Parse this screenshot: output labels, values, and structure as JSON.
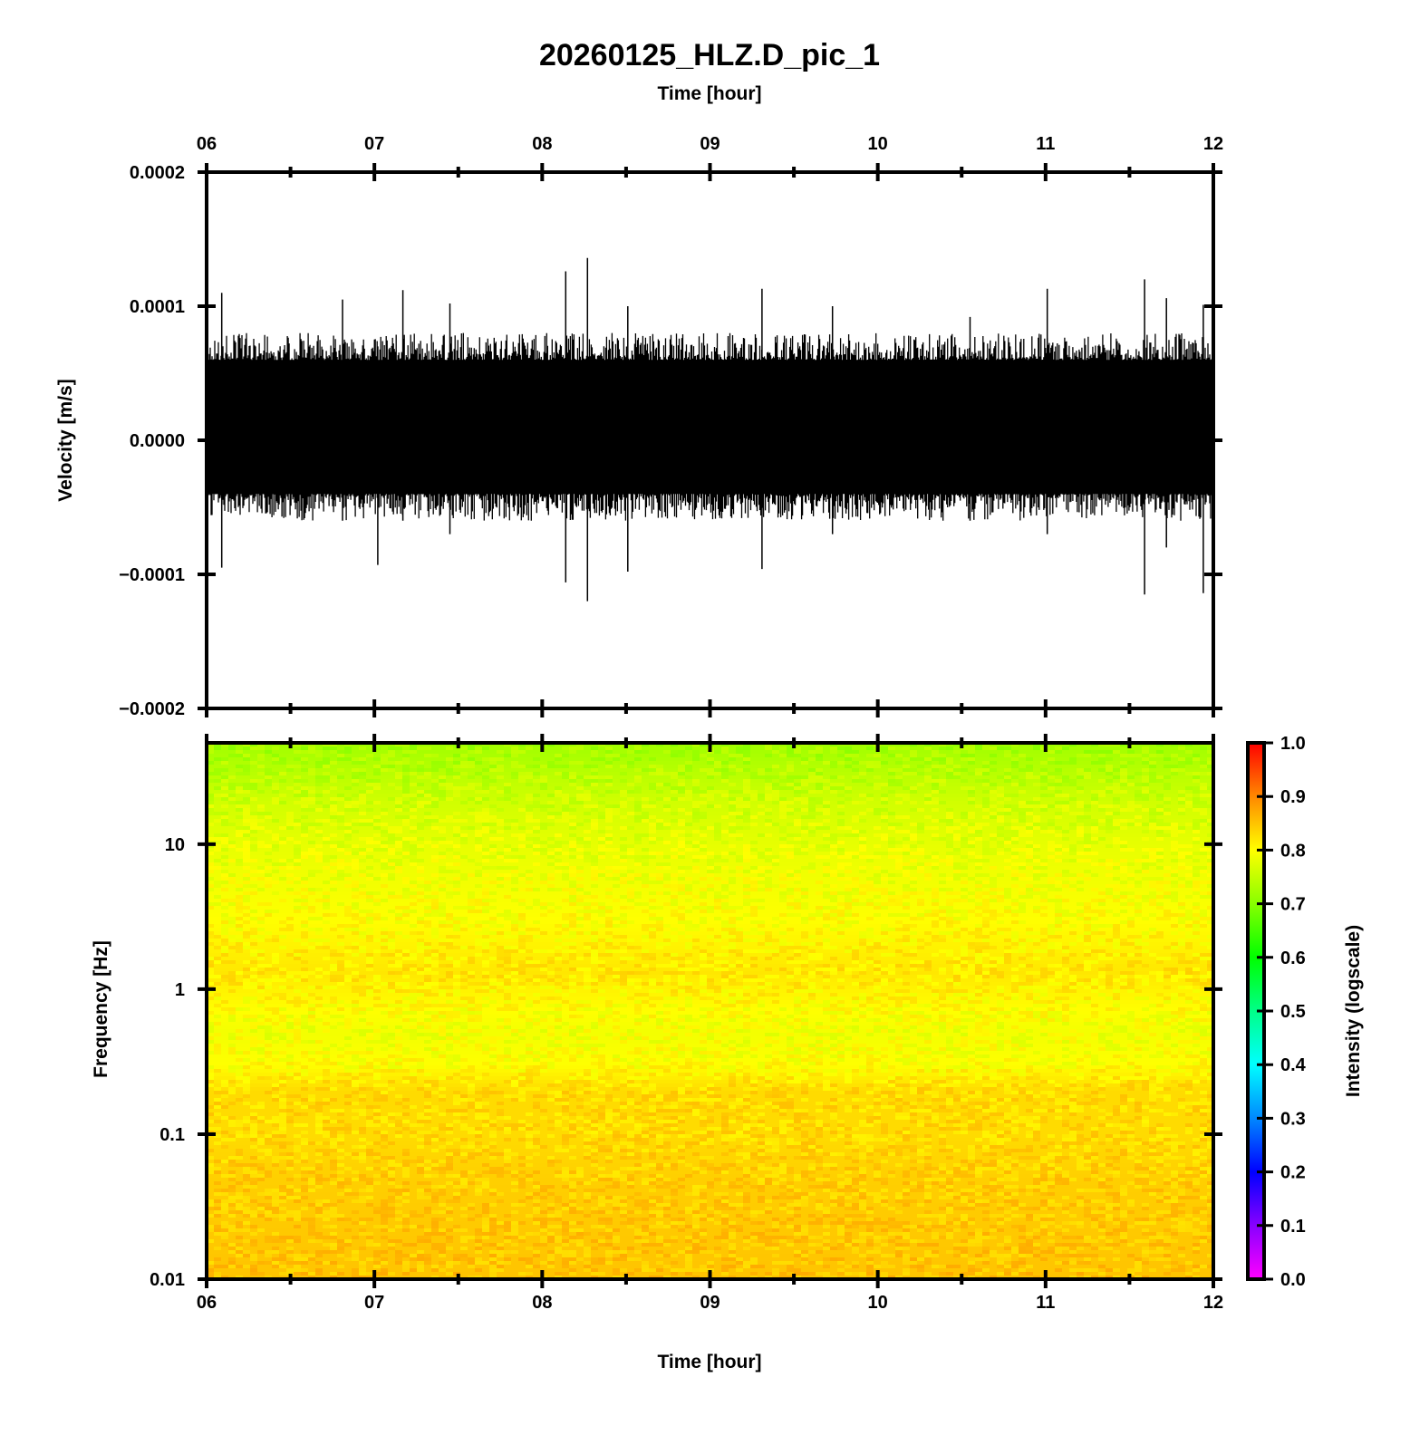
{
  "chart_data": [
    {
      "type": "line",
      "panel": "seismogram",
      "title": "20260125_HLZ.D_pic_1",
      "top_axis_label": "Time [hour]",
      "ylabel": "Velocity [m/s]",
      "xlim": [
        6,
        12
      ],
      "ylim": [
        -0.0002,
        0.0002
      ],
      "x_tick_labels": [
        "06",
        "07",
        "08",
        "09",
        "10",
        "11",
        "12"
      ],
      "y_tick_labels": [
        "0.0002",
        "0.0001",
        "0.0000",
        "−0.0001",
        "−0.0002"
      ],
      "y_tick_values": [
        0.0002,
        0.0001,
        0,
        -0.0001,
        -0.0002
      ],
      "series_color": "#000000",
      "dense_envelope": {
        "upper": 6e-05,
        "lower": -4e-05
      },
      "noise_peaks": {
        "upper": 8e-05,
        "lower": -6e-05
      },
      "spikes": [
        {
          "t": 6.09,
          "max": 0.00011,
          "min": -9.5e-05
        },
        {
          "t": 6.81,
          "max": 0.000105,
          "min": -6e-05
        },
        {
          "t": 7.02,
          "max": 7e-05,
          "min": -9.3e-05
        },
        {
          "t": 7.17,
          "max": 0.000112,
          "min": -6e-05
        },
        {
          "t": 7.45,
          "max": 0.000102,
          "min": -7e-05
        },
        {
          "t": 8.14,
          "max": 0.000126,
          "min": -0.000106
        },
        {
          "t": 8.27,
          "max": 0.000136,
          "min": -0.00012
        },
        {
          "t": 8.51,
          "max": 0.0001,
          "min": -9.8e-05
        },
        {
          "t": 9.31,
          "max": 0.000113,
          "min": -9.6e-05
        },
        {
          "t": 9.73,
          "max": 0.0001,
          "min": -7e-05
        },
        {
          "t": 10.55,
          "max": 9.2e-05,
          "min": -6e-05
        },
        {
          "t": 11.01,
          "max": 0.000113,
          "min": -7e-05
        },
        {
          "t": 11.59,
          "max": 0.00012,
          "min": -0.000115
        },
        {
          "t": 11.72,
          "max": 0.000106,
          "min": -8e-05
        },
        {
          "t": 11.94,
          "max": 0.000101,
          "min": -0.000114
        }
      ]
    },
    {
      "type": "heatmap",
      "panel": "spectrogram",
      "xlabel": "Time [hour]",
      "ylabel": "Frequency [Hz]",
      "xlim": [
        6,
        12
      ],
      "ylim": [
        0.01,
        50
      ],
      "y_scale": "log",
      "x_tick_labels": [
        "06",
        "07",
        "08",
        "09",
        "10",
        "11",
        "12"
      ],
      "y_tick_labels": [
        "10",
        "1",
        "0.1",
        "0.01"
      ],
      "y_tick_values": [
        10,
        1,
        0.1,
        0.01
      ],
      "colorbar": {
        "label": "Intensity (logscale)",
        "range": [
          0,
          1
        ],
        "tick_labels": [
          "1.0",
          "0.9",
          "0.8",
          "0.7",
          "0.6",
          "0.5",
          "0.4",
          "0.3",
          "0.2",
          "0.1",
          "0.0"
        ],
        "tick_values": [
          1.0,
          0.9,
          0.8,
          0.7,
          0.6,
          0.5,
          0.4,
          0.3,
          0.2,
          0.1,
          0.0
        ],
        "colormap": [
          "#ff00ff",
          "#8800ff",
          "#0000ff",
          "#0088ff",
          "#00ffff",
          "#00ff88",
          "#00ff00",
          "#88ff00",
          "#ffff00",
          "#ff8800",
          "#ff0000"
        ]
      },
      "intensity_profile": [
        {
          "freq": 50,
          "intensity": 0.72
        },
        {
          "freq": 20,
          "intensity": 0.76
        },
        {
          "freq": 10,
          "intensity": 0.78
        },
        {
          "freq": 3,
          "intensity": 0.8
        },
        {
          "freq": 1.3,
          "intensity": 0.82
        },
        {
          "freq": 1,
          "intensity": 0.81
        },
        {
          "freq": 0.5,
          "intensity": 0.79
        },
        {
          "freq": 0.3,
          "intensity": 0.8
        },
        {
          "freq": 0.2,
          "intensity": 0.83
        },
        {
          "freq": 0.1,
          "intensity": 0.83
        },
        {
          "freq": 0.05,
          "intensity": 0.84
        },
        {
          "freq": 0.01,
          "intensity": 0.85
        }
      ]
    }
  ]
}
